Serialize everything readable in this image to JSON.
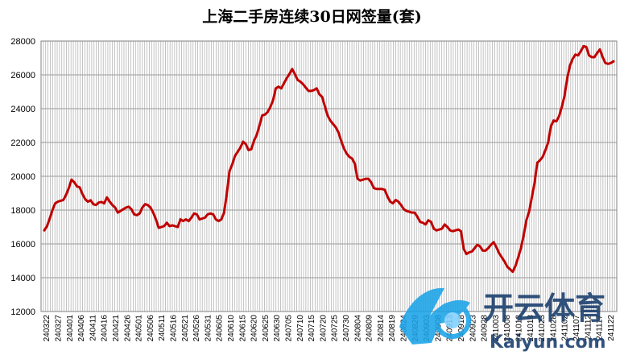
{
  "chart_data": {
    "type": "line",
    "title": "上海二手房连续30日网签量(套)",
    "xlabel": "",
    "ylabel": "",
    "ylim": [
      12000,
      28000
    ],
    "yticks": [
      12000,
      14000,
      16000,
      18000,
      20000,
      22000,
      24000,
      26000,
      28000
    ],
    "grid": true,
    "legend": "none",
    "line_color": "#c00000",
    "x_tick_labels": [
      "240322",
      "240327",
      "240401",
      "240406",
      "240411",
      "240416",
      "240421",
      "240426",
      "240501",
      "240506",
      "240511",
      "240516",
      "240521",
      "240526",
      "240531",
      "240605",
      "240610",
      "240615",
      "240620",
      "240625",
      "240630",
      "240705",
      "240710",
      "240715",
      "240720",
      "240725",
      "240730",
      "240804",
      "240809",
      "240814",
      "240819",
      "240824",
      "240829",
      "240903",
      "240908",
      "240913",
      "240918",
      "240923",
      "240928",
      "241003",
      "241008",
      "241013",
      "241018",
      "241023",
      "241028",
      "241102",
      "241107",
      "241112",
      "241117",
      "241122"
    ],
    "series": [
      {
        "name": "",
        "values": [
          16800,
          17050,
          17500,
          18000,
          18400,
          18500,
          18550,
          18600,
          18900,
          19300,
          19800,
          19650,
          19400,
          19350,
          18950,
          18650,
          18500,
          18580,
          18350,
          18300,
          18450,
          18480,
          18400,
          18750,
          18500,
          18300,
          18150,
          17850,
          17950,
          18050,
          18150,
          18200,
          18050,
          17750,
          17700,
          17800,
          18150,
          18350,
          18300,
          18150,
          17850,
          17450,
          16950,
          17000,
          17050,
          17250,
          17050,
          17100,
          17050,
          17000,
          17450,
          17350,
          17450,
          17350,
          17550,
          17800,
          17750,
          17450,
          17500,
          17550,
          17750,
          17800,
          17750,
          17450,
          17350,
          17450,
          17850,
          18950,
          20300,
          20700,
          21200,
          21450,
          21700,
          22050,
          21900,
          21550,
          21600,
          22100,
          22450,
          23000,
          23600,
          23650,
          23800,
          24100,
          24500,
          25200,
          25300,
          25200,
          25500,
          25800,
          26050,
          26350,
          26050,
          25700,
          25600,
          25450,
          25250,
          25050,
          25050,
          25100,
          25200,
          24850,
          24700,
          24150,
          23600,
          23300,
          23100,
          22900,
          22600,
          22100,
          21650,
          21350,
          21150,
          21050,
          20750,
          19850,
          19750,
          19800,
          19850,
          19850,
          19650,
          19300,
          19250,
          19250,
          19250,
          19200,
          18800,
          18500,
          18400,
          18600,
          18500,
          18300,
          18050,
          17950,
          17900,
          17850,
          17850,
          17600,
          17300,
          17250,
          17150,
          17400,
          17300,
          16900,
          16800,
          16850,
          16900,
          17150,
          17000,
          16800,
          16750,
          16800,
          16850,
          16750,
          15700,
          15400,
          15500,
          15550,
          15750,
          15950,
          15850,
          15600,
          15600,
          15750,
          15950,
          16100,
          15800,
          15450,
          15200,
          14950,
          14650,
          14500,
          14350,
          14700,
          15200,
          15750,
          16500,
          17400,
          17900,
          18750,
          19600,
          20800,
          20950,
          21150,
          21550,
          22000,
          22950,
          23300,
          23250,
          23550,
          24100,
          24750,
          25800,
          26550,
          26950,
          27200,
          27150,
          27400,
          27700,
          27650,
          27150,
          27050,
          27050,
          27300,
          27500,
          27050,
          26700,
          26650,
          26700,
          26800
        ]
      }
    ]
  },
  "watermark": {
    "brand": "开云体育",
    "url": "Kaiyun.com"
  }
}
